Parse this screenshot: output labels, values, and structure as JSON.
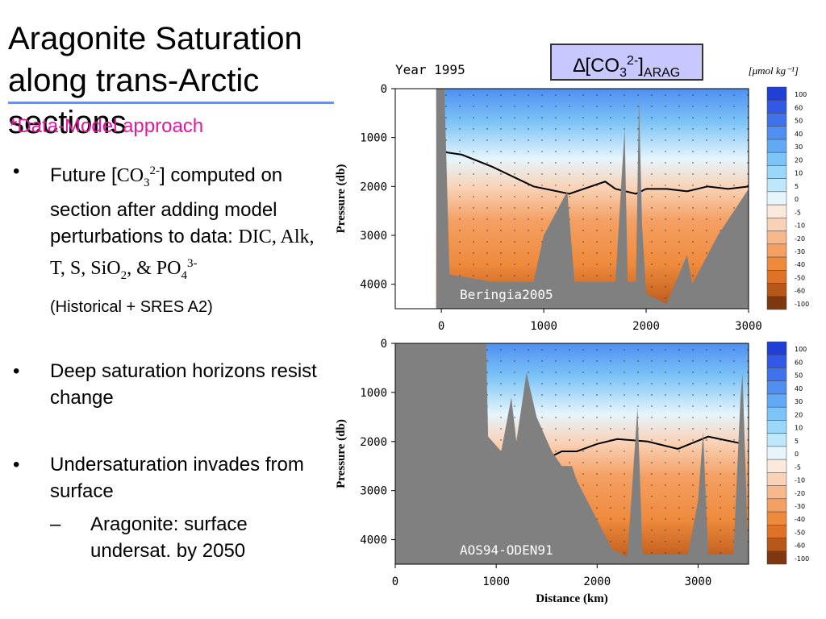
{
  "slide": {
    "title": "Aragonite Saturation along trans-Arctic sections",
    "subtitle": "*Data-Model approach",
    "bullets": [
      {
        "lead": "Future [",
        "chem": "CO",
        "sub1": "3",
        "sup1": "2-",
        "rest": "] computed on section after adding model perturbations to data: ",
        "vars": "DIC, Alk, T, S, SiO",
        "vsub": "2",
        "vand": ", & PO",
        "vsub2": "4",
        "vsup2": "3-",
        "note": "(Historical + SRES A2)"
      },
      {
        "text": "Deep saturation horizons resist change"
      },
      {
        "text": "Undersaturation invades from surface",
        "sub_bullet": "Aragonite: surface undersat. by 2050"
      }
    ],
    "bullet_marker": "•",
    "sub_marker": "–"
  },
  "annotation": {
    "delta": "∆",
    "open": "[CO",
    "sub": "3",
    "sup": "2-",
    "close": "]",
    "suffix": "ARAG"
  },
  "chart_data": [
    {
      "type": "heatmap",
      "title": "Year 1995",
      "section_label": "Beringia2005",
      "ylabel": "Pressure (db)",
      "xlabel": "",
      "x_ticks": [
        0,
        1000,
        2000,
        3000
      ],
      "y_ticks": [
        0,
        1000,
        2000,
        3000,
        4000
      ],
      "xlim": [
        -450,
        3000
      ],
      "ylim": [
        4500,
        0
      ],
      "units": "[μmol kg⁻¹]",
      "colorbar_levels": [
        100,
        60,
        50,
        40,
        30,
        20,
        10,
        5,
        0,
        -5,
        -10,
        -20,
        -30,
        -40,
        -50,
        -60,
        -100
      ],
      "colorbar_colors": [
        "#1f3fd6",
        "#2f59e6",
        "#3f73ee",
        "#4f8ff2",
        "#62a9f4",
        "#7cc3f6",
        "#9bd7f8",
        "#bfe7fa",
        "#e6f5fc",
        "#fbe9de",
        "#f9d2b6",
        "#f7b98c",
        "#f4a063",
        "#ee8a3c",
        "#de7328",
        "#b8571a",
        "#7e3810"
      ],
      "saturation_horizon_depth_db": [
        1300,
        1350,
        1600,
        2000,
        2150,
        1900,
        2050,
        2150,
        2050,
        2050,
        2100,
        2000,
        2050,
        2000
      ],
      "saturation_horizon_x_km": [
        40,
        200,
        500,
        900,
        1250,
        1600,
        1700,
        1900,
        2000,
        2200,
        2400,
        2600,
        2800,
        3000
      ]
    },
    {
      "type": "heatmap",
      "title": "",
      "section_label": "AOS94-ODEN91",
      "ylabel": "Pressure (db)",
      "xlabel": "Distance (km)",
      "x_ticks": [
        0,
        1000,
        2000,
        3000
      ],
      "y_ticks": [
        0,
        1000,
        2000,
        3000,
        4000
      ],
      "xlim": [
        0,
        3500
      ],
      "ylim": [
        4500,
        0
      ],
      "colorbar_levels": [
        100,
        60,
        50,
        40,
        30,
        20,
        10,
        5,
        0,
        -5,
        -10,
        -20,
        -30,
        -40,
        -50,
        -60,
        -100
      ],
      "colorbar_colors": [
        "#1f3fd6",
        "#2f59e6",
        "#3f73ee",
        "#4f8ff2",
        "#62a9f4",
        "#7cc3f6",
        "#9bd7f8",
        "#bfe7fa",
        "#e6f5fc",
        "#fbe9de",
        "#f9d2b6",
        "#f7b98c",
        "#f4a063",
        "#ee8a3c",
        "#de7328",
        "#b8571a",
        "#7e3810"
      ],
      "saturation_horizon_depth_db": [
        2200,
        2250,
        2350,
        2200,
        2200,
        2050,
        1950,
        2000,
        2150,
        1900,
        2050
      ],
      "saturation_horizon_x_km": [
        900,
        1200,
        1500,
        1650,
        1800,
        2000,
        2200,
        2500,
        2800,
        3100,
        3450
      ]
    }
  ]
}
